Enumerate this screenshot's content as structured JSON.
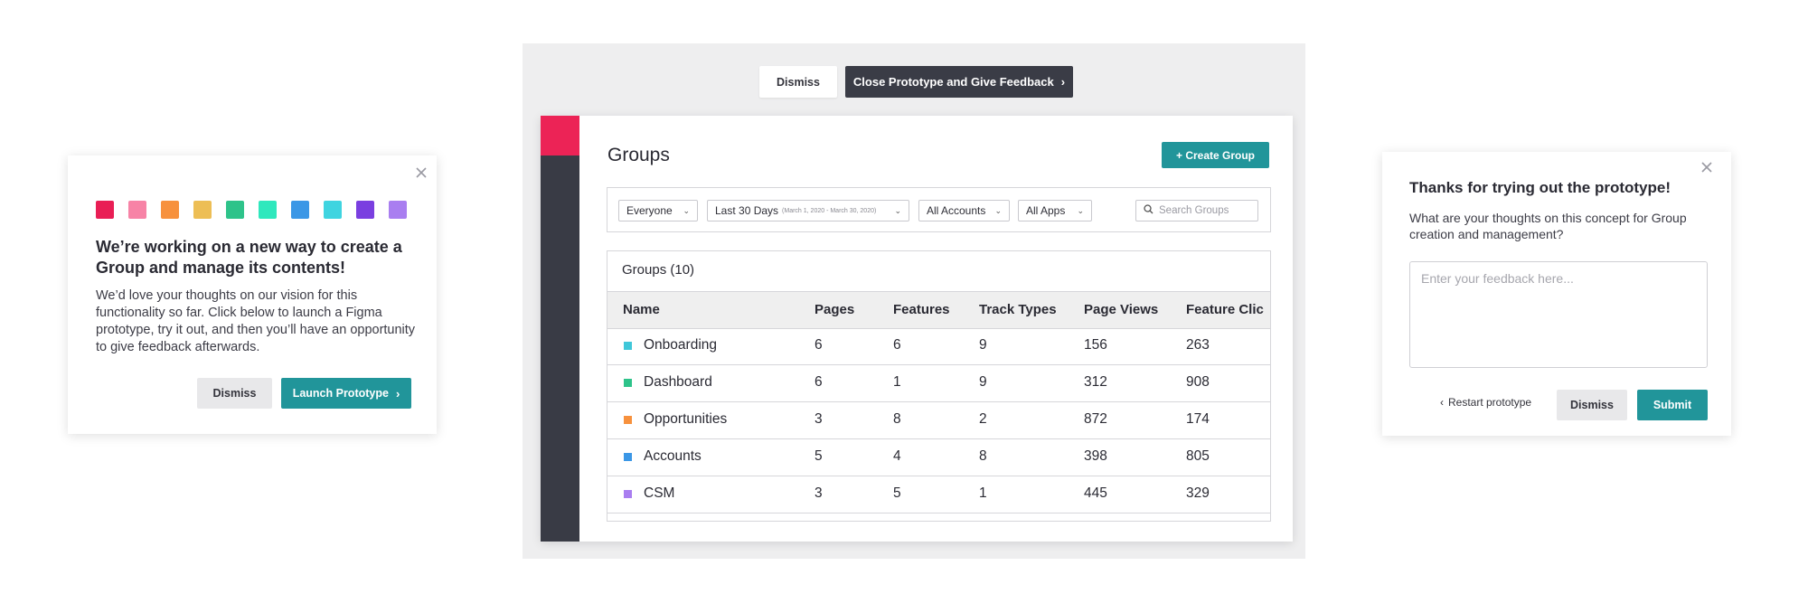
{
  "intro_card": {
    "swatch_colors": [
      "#e91e55",
      "#f783a6",
      "#f7913d",
      "#edbe55",
      "#2ec38a",
      "#2fe8bd",
      "#3b97e6",
      "#3fd4e0",
      "#7a3fe0",
      "#a97ef0"
    ],
    "heading": "We’re working on a new way to create a Group and manage its contents!",
    "body": "We’d love your thoughts on our vision for this functionality so far. Click below to launch a Figma prototype, try it out, and then you’ll have an opportunity to give feedback afterwards.",
    "dismiss_label": "Dismiss",
    "launch_label": "Launch Prototype",
    "close_icon": "close-icon"
  },
  "prototype_bar": {
    "dismiss_label": "Dismiss",
    "close_feedback_label": "Close Prototype and Give Feedback"
  },
  "app": {
    "brand_color": "#ec2356",
    "page_title": "Groups",
    "create_label": "+ Create Group",
    "filters": {
      "segment": "Everyone",
      "date_range": "Last 30 Days",
      "date_range_detail": "(March 1, 2020 - March 30, 2020)",
      "accounts": "All Accounts",
      "apps": "All Apps"
    },
    "search": {
      "placeholder": "Search Groups"
    },
    "table": {
      "count_label": "Groups (10)",
      "columns": [
        "Name",
        "Pages",
        "Features",
        "Track Types",
        "Page Views",
        "Feature Clic"
      ],
      "rows": [
        {
          "color": "#3fc7d9",
          "name": "Onboarding",
          "pages": "6",
          "features": "6",
          "track_types": "9",
          "page_views": "156",
          "feature_clicks": "263"
        },
        {
          "color": "#2ec38a",
          "name": "Dashboard",
          "pages": "6",
          "features": "1",
          "track_types": "9",
          "page_views": "312",
          "feature_clicks": "908"
        },
        {
          "color": "#f7913d",
          "name": "Opportunities",
          "pages": "3",
          "features": "8",
          "track_types": "2",
          "page_views": "872",
          "feature_clicks": "174"
        },
        {
          "color": "#3b97e6",
          "name": "Accounts",
          "pages": "5",
          "features": "4",
          "track_types": "8",
          "page_views": "398",
          "feature_clicks": "805"
        },
        {
          "color": "#a97ef0",
          "name": "CSM",
          "pages": "3",
          "features": "5",
          "track_types": "1",
          "page_views": "445",
          "feature_clicks": "329"
        }
      ]
    }
  },
  "feedback_card": {
    "heading": "Thanks for trying out the prototype!",
    "question": "What are your thoughts on this concept for Group creation and management?",
    "placeholder": "Enter your feedback here...",
    "restart_label": "Restart prototype",
    "dismiss_label": "Dismiss",
    "submit_label": "Submit"
  }
}
